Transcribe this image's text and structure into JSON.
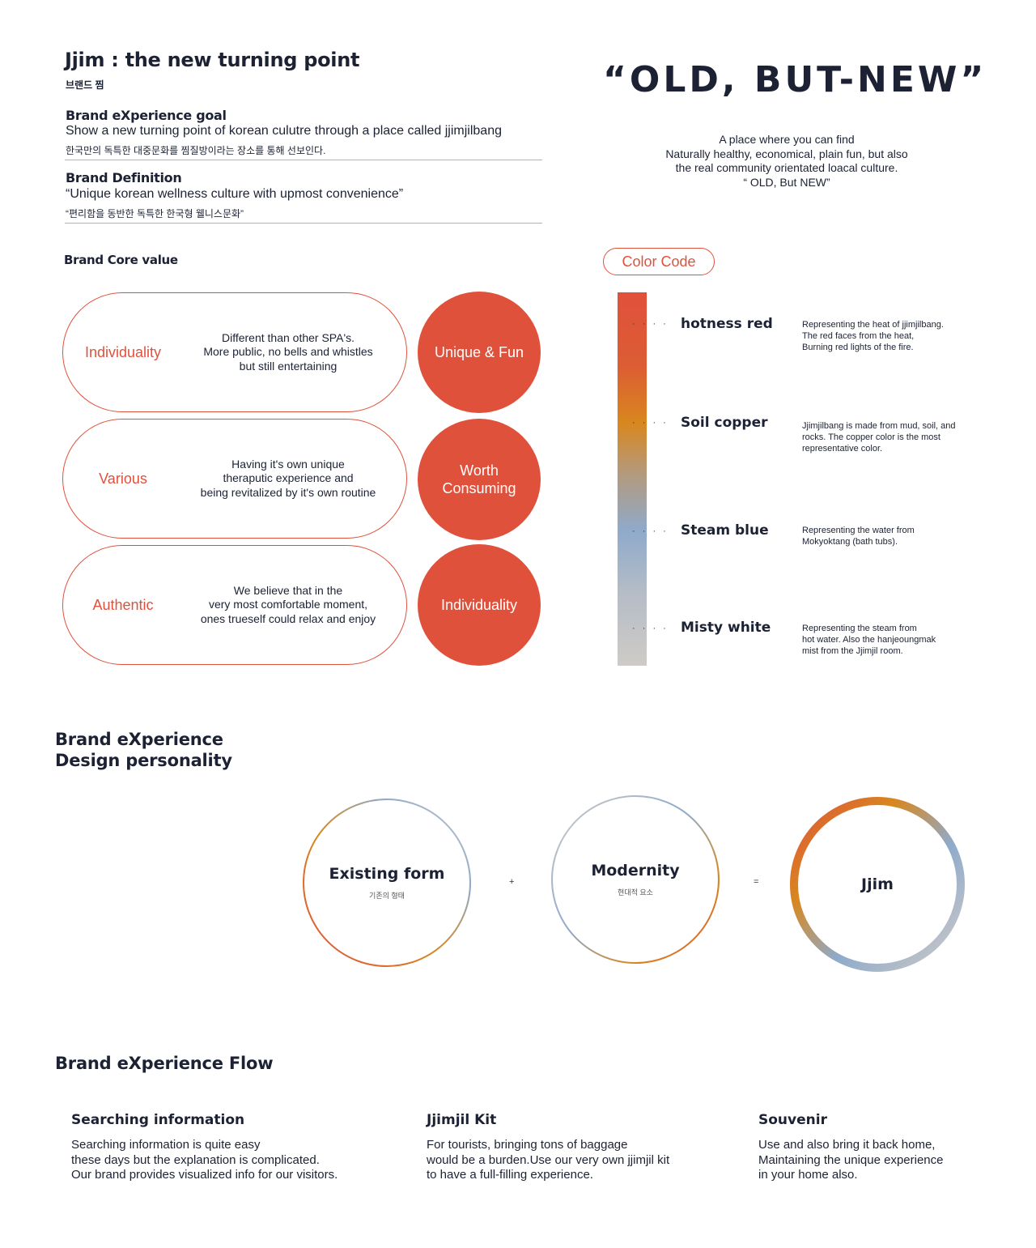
{
  "header": {
    "title": "Jjim : the new turning point",
    "subtitle": "브랜드 찜"
  },
  "goal": {
    "label": "Brand eXperience goal",
    "text": "Show a new turning point of korean culutre through a place called jjimjilbang",
    "korean": "한국만의 독특한 대중문화를 찜질방이라는 장소를 통해 선보인다."
  },
  "definition": {
    "label": "Brand Definition",
    "text": "“Unique korean wellness culture with upmost convenience”",
    "korean": "“편리함을 동반한 독특한 한국형 웰니스문화”"
  },
  "slogan": {
    "text": "“OLD, BUT-NEW”",
    "desc": [
      "A place where you can find",
      "Naturally healthy, economical, plain fun,  but also",
      "the real community orientated loacal culture.",
      "“ OLD, But NEW”"
    ]
  },
  "core": {
    "title": "Brand Core value",
    "items": [
      {
        "label": "Individuality",
        "desc": [
          "Different than other SPA's.",
          "More public, no bells and whistles",
          "but still entertaining"
        ],
        "value": "Unique & Fun"
      },
      {
        "label": "Various",
        "desc": [
          "Having it's own unique",
          "theraputic experience and",
          "being revitalized by it's own routine"
        ],
        "value": "Worth Consuming"
      },
      {
        "label": "Authentic",
        "desc": [
          "We believe that in the",
          "very most comfortable moment,",
          "ones trueself could relax and enjoy"
        ],
        "value": "Individuality"
      }
    ]
  },
  "color_code": {
    "tag": "Color Code",
    "dots": "· · · ·",
    "items": [
      {
        "name": "hotness red",
        "color": "#e0513c",
        "desc": [
          "Representing the heat of jjimjilbang.",
          "The red faces from the heat,",
          "Burning red lights of the fire."
        ]
      },
      {
        "name": "Soil copper",
        "color": "#d8871e",
        "desc": [
          "Jjimjilbang is made from mud, soil, and",
          "rocks. The copper color is the most",
          "representative color."
        ]
      },
      {
        "name": "Steam blue",
        "color": "#8faacb",
        "desc": [
          "Representing the water from",
          "Mokyoktang (bath tubs)."
        ]
      },
      {
        "name": "Misty white",
        "color": "#cfcbc6",
        "desc": [
          "Representing the steam from",
          "hot water. Also the hanjeoungmak",
          "mist from the Jjimjil room."
        ]
      }
    ]
  },
  "personality": {
    "title": [
      "Brand eXperience",
      "Design personality"
    ],
    "existing": {
      "title": "Existing form",
      "sub": "기존의 형태"
    },
    "plus": "+",
    "modernity": {
      "title": "Modernity",
      "sub": "현대적 요소"
    },
    "equals": "=",
    "result": {
      "title": "Jjim"
    }
  },
  "flow": {
    "title": "Brand eXperience Flow",
    "items": [
      {
        "title": "Searching information",
        "desc": [
          "Searching information is quite easy",
          "these days but the explanation is complicated.",
          "Our brand provides visualized info for our visitors."
        ]
      },
      {
        "title": "Jjimjil Kit",
        "desc": [
          "For tourists, bringing tons of baggage",
          "would be a burden.Use our very own jjimjil kit",
          "to have a full-filling experience."
        ]
      },
      {
        "title": "Souvenir",
        "desc": [
          "Use and also bring it back home,",
          "Maintaining the unique experience",
          "in your home also."
        ]
      }
    ]
  }
}
